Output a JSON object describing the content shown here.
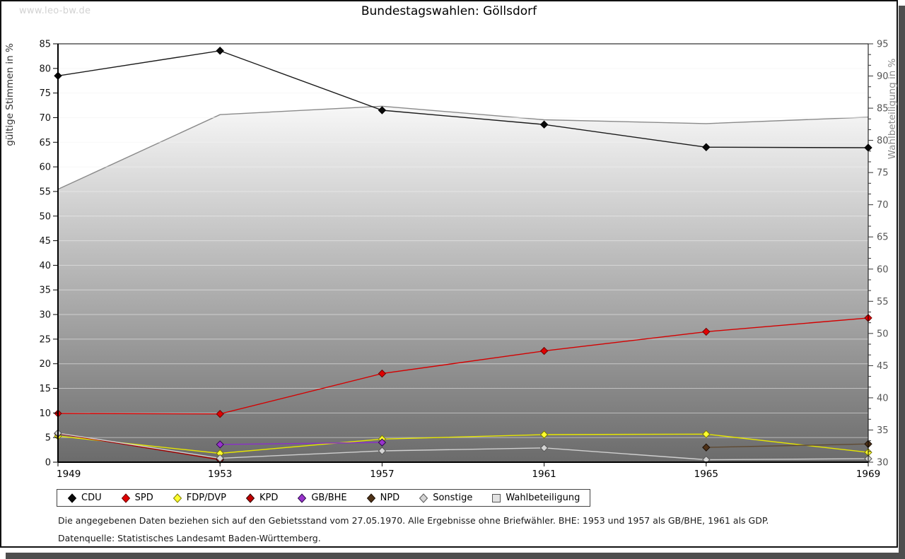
{
  "watermark": "www.leo-bw.de",
  "title": "Bundestagswahlen: Göllsdorf",
  "footnotes": {
    "line1": "Die angegebenen Daten beziehen sich auf den Gebietsstand vom 27.05.1970. Alle Ergebnisse ohne Briefwähler. BHE: 1953 und 1957 als GB/BHE, 1961 als GDP.",
    "line2": "Datenquelle: Statistisches Landesamt Baden-Württemberg."
  },
  "chart_data": {
    "type": "line",
    "x": [
      "1949",
      "1953",
      "1957",
      "1961",
      "1965",
      "1969"
    ],
    "axes": {
      "left": {
        "label": "gültige Stimmen in %",
        "min": 0,
        "max": 85,
        "tick_step": 5
      },
      "right": {
        "label": "Wahlbeteiligung in %",
        "min": 30,
        "max": 95,
        "tick_step": 5
      }
    },
    "grid": {
      "on": true,
      "step": 5
    },
    "series": [
      {
        "name": "Wahlbeteiligung",
        "type": "area",
        "axis": "right",
        "values": [
          72.4,
          84.0,
          85.3,
          83.2,
          82.6,
          83.6
        ],
        "line_color": "#8a8a8a",
        "fill_top": "#fbfbfb",
        "fill_bottom": "#6b6b6b"
      },
      {
        "name": "SPD",
        "type": "line",
        "axis": "left",
        "values": [
          9.9,
          9.8,
          18.0,
          22.6,
          26.5,
          29.3
        ],
        "line_color": "#d40000",
        "marker_fill": "#e00000",
        "marker_stroke": "#6e0000"
      },
      {
        "name": "FDP/DVP",
        "type": "line",
        "axis": "left",
        "values": [
          5.3,
          1.8,
          4.7,
          5.6,
          5.7,
          2.0
        ],
        "line_color": "#e6e600",
        "marker_fill": "#ffff2e",
        "marker_stroke": "#7d7d00"
      },
      {
        "name": "KPD",
        "type": "line",
        "axis": "left",
        "values": [
          5.8,
          0.5,
          null,
          null,
          null,
          null
        ],
        "line_color": "#a00000",
        "marker_fill": "#c00000",
        "marker_stroke": "#2e0000"
      },
      {
        "name": "GB/BHE",
        "type": "line",
        "axis": "left",
        "values": [
          null,
          3.6,
          4.0,
          null,
          null,
          null
        ],
        "line_color": "#8b2fc9",
        "marker_fill": "#9933cc",
        "marker_stroke": "#2d0a4e"
      },
      {
        "name": "NPD",
        "type": "line",
        "axis": "left",
        "values": [
          null,
          null,
          null,
          null,
          3.0,
          3.7
        ],
        "line_color": "#5f4a32",
        "marker_fill": "#4f3218",
        "marker_stroke": "#1c1006"
      },
      {
        "name": "Sonstige",
        "type": "line",
        "axis": "left",
        "values": [
          5.9,
          0.8,
          2.3,
          2.9,
          0.5,
          0.7
        ],
        "line_color": "#cfcfcf",
        "marker_fill": "#d4d4d4",
        "marker_stroke": "#585858"
      },
      {
        "name": "CDU",
        "type": "line",
        "axis": "left",
        "values": [
          78.5,
          83.6,
          71.5,
          68.6,
          64.0,
          63.9
        ],
        "line_color": "#1a1a1a",
        "marker_fill": "#0a0a0a",
        "marker_stroke": "#000000"
      }
    ],
    "legend": [
      {
        "label": "CDU",
        "shape": "diamond",
        "fill": "#0a0a0a",
        "stroke": "#000000"
      },
      {
        "label": "SPD",
        "shape": "diamond",
        "fill": "#e00000",
        "stroke": "#6e0000"
      },
      {
        "label": "FDP/DVP",
        "shape": "diamond",
        "fill": "#ffff2e",
        "stroke": "#7d7d00"
      },
      {
        "label": "KPD",
        "shape": "diamond",
        "fill": "#c00000",
        "stroke": "#2e0000"
      },
      {
        "label": "GB/BHE",
        "shape": "diamond",
        "fill": "#9933cc",
        "stroke": "#2d0a4e"
      },
      {
        "label": "NPD",
        "shape": "diamond",
        "fill": "#4f3218",
        "stroke": "#1c1006"
      },
      {
        "label": "Sonstige",
        "shape": "diamond",
        "fill": "#d4d4d4",
        "stroke": "#585858"
      },
      {
        "label": "Wahlbeteiligung",
        "shape": "square",
        "fill": "#e2e2e2",
        "stroke": "#555555"
      }
    ]
  }
}
